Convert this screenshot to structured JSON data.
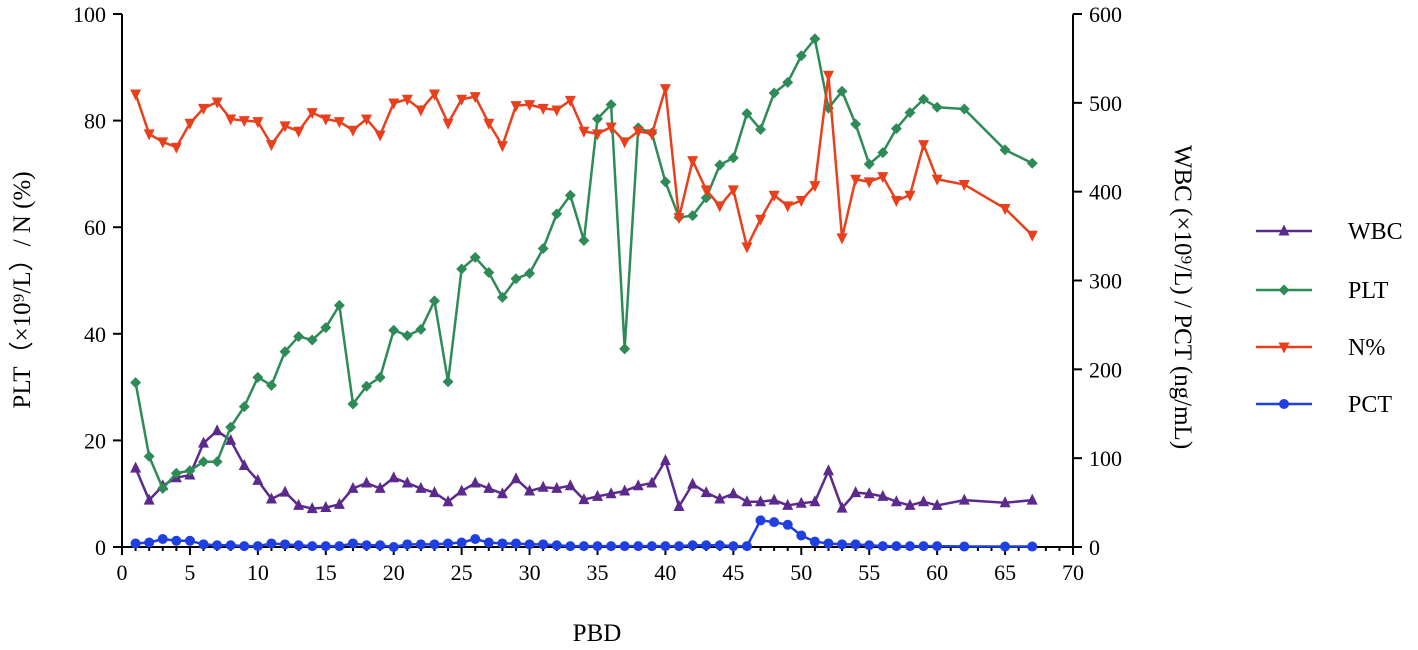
{
  "chart_data": {
    "type": "line",
    "xlabel": "PBD",
    "ylabel_left": "PLT（×10⁹/L）/ N (%)",
    "ylabel_right": "WBC (×10⁹/L) / PCT (ng/mL)",
    "xlim": [
      0,
      70
    ],
    "ylim_left": [
      0,
      100
    ],
    "ylim_right": [
      0,
      600
    ],
    "x_ticks": [
      0,
      5,
      10,
      15,
      20,
      25,
      30,
      35,
      40,
      45,
      50,
      55,
      60,
      65,
      70
    ],
    "y_left_ticks": [
      0,
      20,
      40,
      60,
      80,
      100
    ],
    "y_right_ticks": [
      0,
      100,
      200,
      300,
      400,
      500,
      600
    ],
    "grid": false,
    "legend_position": "right",
    "series": [
      {
        "name": "WBC",
        "color": "#5b2a8c",
        "marker": "triangle-up",
        "axis": "left",
        "x": [
          1,
          2,
          3,
          4,
          5,
          6,
          7,
          8,
          9,
          10,
          11,
          12,
          13,
          14,
          15,
          16,
          17,
          18,
          19,
          20,
          21,
          22,
          23,
          24,
          25,
          26,
          27,
          28,
          29,
          30,
          31,
          32,
          33,
          34,
          35,
          36,
          37,
          38,
          39,
          40,
          41,
          42,
          43,
          44,
          45,
          46,
          47,
          48,
          49,
          50,
          51,
          52,
          53,
          54,
          55,
          56,
          57,
          58,
          59,
          60,
          62,
          65,
          67
        ],
        "y": [
          14.8,
          8.8,
          11.5,
          13.0,
          13.5,
          19.5,
          21.8,
          20.0,
          15.3,
          12.5,
          9.0,
          10.3,
          7.8,
          7.2,
          7.4,
          8.0,
          11.0,
          12.0,
          11.0,
          13.0,
          12.0,
          11.0,
          10.2,
          8.5,
          10.5,
          12.0,
          11.0,
          10.0,
          12.8,
          10.5,
          11.2,
          11.0,
          11.5,
          8.9,
          9.5,
          10.0,
          10.5,
          11.5,
          12.0,
          16.2,
          7.6,
          11.8,
          10.2,
          9.0,
          10.0,
          8.5,
          8.5,
          8.8,
          7.8,
          8.2,
          8.5,
          14.3,
          7.3,
          10.2,
          10.0,
          9.5,
          8.5,
          7.8,
          8.5,
          7.8,
          8.8,
          8.3,
          8.8
        ]
      },
      {
        "name": "PLT",
        "color": "#2e8b57",
        "marker": "diamond",
        "axis": "right",
        "x": [
          1,
          2,
          3,
          4,
          5,
          6,
          7,
          8,
          9,
          10,
          11,
          12,
          13,
          14,
          15,
          16,
          17,
          18,
          19,
          20,
          21,
          22,
          23,
          24,
          25,
          26,
          27,
          28,
          29,
          30,
          31,
          32,
          33,
          34,
          35,
          36,
          37,
          38,
          39,
          40,
          41,
          42,
          43,
          44,
          45,
          46,
          47,
          48,
          49,
          50,
          51,
          52,
          53,
          54,
          55,
          56,
          57,
          58,
          59,
          60,
          62,
          65,
          67
        ],
        "y": [
          185,
          102,
          66,
          83,
          86,
          96,
          96,
          135,
          158,
          191,
          182,
          220,
          237,
          233,
          247,
          272,
          161,
          181,
          191,
          244,
          238,
          245,
          277,
          186,
          313,
          326,
          309,
          281,
          302,
          308,
          336,
          375,
          396,
          345,
          482,
          498,
          223,
          472,
          466,
          411,
          371,
          373,
          393,
          430,
          438,
          488,
          470,
          511,
          523,
          553,
          572,
          494,
          513,
          476,
          431,
          444,
          471,
          489,
          504,
          495,
          493,
          447,
          432
        ]
      },
      {
        "name": "N%",
        "color": "#e8401c",
        "marker": "triangle-down",
        "axis": "left",
        "x": [
          1,
          2,
          3,
          4,
          5,
          6,
          7,
          8,
          9,
          10,
          11,
          12,
          13,
          14,
          15,
          16,
          17,
          18,
          19,
          20,
          21,
          22,
          23,
          24,
          25,
          26,
          27,
          28,
          29,
          30,
          31,
          32,
          33,
          34,
          35,
          36,
          37,
          38,
          39,
          40,
          41,
          42,
          43,
          44,
          45,
          46,
          47,
          48,
          49,
          50,
          51,
          52,
          53,
          54,
          55,
          56,
          57,
          58,
          59,
          60,
          62,
          65,
          67
        ],
        "y": [
          85,
          77.5,
          76.0,
          75.0,
          79.5,
          82.3,
          83.5,
          80.3,
          80.0,
          79.8,
          75.5,
          79.0,
          78.0,
          81.5,
          80.3,
          79.8,
          78.2,
          80.3,
          77.3,
          83.3,
          84.0,
          82.0,
          85.0,
          79.5,
          84.0,
          84.5,
          79.5,
          75.3,
          82.8,
          83.0,
          82.3,
          82.0,
          83.8,
          78.0,
          77.5,
          78.8,
          76.0,
          78.0,
          77.5,
          86.0,
          61.8,
          72.5,
          67.0,
          64.0,
          67.0,
          56.3,
          61.5,
          66.0,
          64.0,
          65.0,
          67.8,
          88.5,
          58.0,
          69.0,
          68.5,
          69.5,
          65.0,
          66.0,
          75.5,
          69.0,
          68.0,
          63.5,
          58.5
        ]
      },
      {
        "name": "PCT",
        "color": "#1f3fe0",
        "marker": "circle",
        "axis": "right",
        "x": [
          1,
          2,
          3,
          4,
          5,
          6,
          7,
          8,
          9,
          10,
          11,
          12,
          13,
          14,
          15,
          16,
          17,
          18,
          19,
          20,
          21,
          22,
          23,
          24,
          25,
          26,
          27,
          28,
          29,
          30,
          31,
          32,
          33,
          34,
          35,
          36,
          37,
          38,
          39,
          40,
          41,
          42,
          43,
          44,
          45,
          46,
          47,
          48,
          49,
          50,
          51,
          52,
          53,
          54,
          55,
          56,
          57,
          58,
          59,
          60,
          62,
          65,
          67
        ],
        "y": [
          4,
          5,
          9,
          7,
          7,
          3,
          2,
          2,
          1,
          1,
          4,
          3,
          2,
          1,
          1,
          1,
          4,
          2,
          2,
          0,
          3,
          3,
          3,
          4,
          5,
          9,
          5,
          4,
          4,
          3,
          3,
          2,
          1,
          1,
          1,
          1,
          1,
          1,
          1,
          1,
          1,
          2,
          2,
          2,
          1,
          1,
          30,
          28,
          25,
          13,
          6,
          4,
          3,
          3,
          2,
          1,
          1,
          1,
          1,
          1,
          0.5,
          0.5,
          0.5
        ]
      }
    ]
  }
}
